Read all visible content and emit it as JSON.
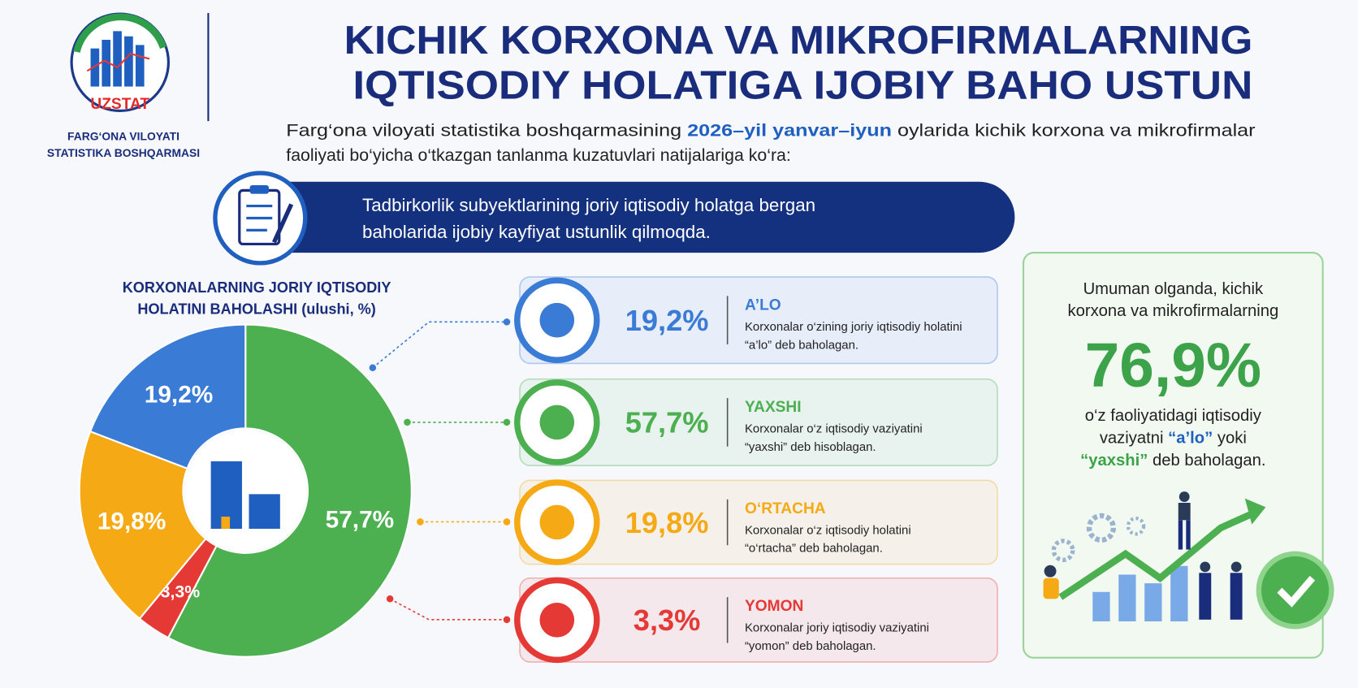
{
  "header": {
    "logo_text": "UZSTAT",
    "org_lines": [
      "FARG‘ONA VILOYATI",
      "STATISTIKA BOSHQARMASI"
    ],
    "title_lines": [
      "KICHIK KORXONA VA MIKROFIRMALARNING",
      "IQTISODIY HOLATIGA IJOBIY BAHO USTUN"
    ]
  },
  "intro": {
    "line1": {
      "before": "Farg‘ona viloyati statistika boshqarmasining ",
      "highlight": "2026–yil yanvar–iyun",
      "after": " oylarida kichik korxona va mikrofirmalar"
    },
    "line2": "faoliyati bo‘yicha o‘tkazgan tanlanma kuzatuvlari natijalariga ko‘ra:"
  },
  "banner": {
    "lines": [
      "Tadbirkorlik subyektlarining joriy iqtisodiy holatga bergan",
      "baholarida ijobiy kayfiyat ustunlik qilmoqda."
    ]
  },
  "chart_data": {
    "type": "pie",
    "donut": true,
    "title_lines": [
      "KORXONALARNING JORIY IQTISODIY",
      "HOLATINI BAHOLASHI (ulushi, %)"
    ],
    "categories": [
      "A’LO",
      "YAXSHI",
      "O‘RTACHA",
      "YOMON"
    ],
    "values": [
      19.2,
      57.7,
      19.8,
      3.3
    ],
    "value_labels": [
      "19,2%",
      "57,7%",
      "19,8%",
      "3,3%"
    ],
    "colors": [
      "#3a7bd5",
      "#4caf50",
      "#f5a914",
      "#e53935"
    ]
  },
  "cards": [
    {
      "description_lines": [
        "Korxonalar o‘zining joriy iqtisodiy holatini",
        "“a’lo” deb baholagan."
      ]
    },
    {
      "description_lines": [
        "Korxonalar o‘z iqtisodiy vaziyatini",
        "“yaxshi” deb hisoblagan."
      ]
    },
    {
      "description_lines": [
        "Korxonalar o‘z iqtisodiy holatini",
        "“o‘rtacha” deb baholagan."
      ]
    },
    {
      "description_lines": [
        "Korxonalar joriy iqtisodiy vaziyatini",
        "“yomon” deb baholagan."
      ]
    }
  ],
  "summary": {
    "top_lines": [
      "Umuman olganda, kichik",
      "korxona va mikrofirmalarning"
    ],
    "big": "76,9%",
    "line3": "o‘z faoliyatidagi iqtisodiy",
    "line4": {
      "before": "vaziyatni ",
      "highlight": "“a’lo”",
      "after": " yoki"
    },
    "line5": {
      "highlight": "“yaxshi”",
      "after": " deb baholagan."
    }
  }
}
